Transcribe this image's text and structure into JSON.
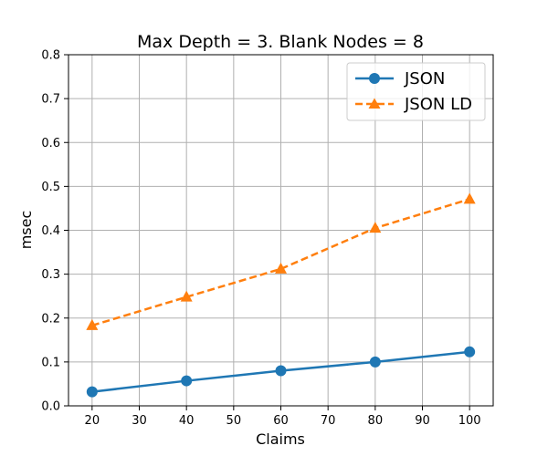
{
  "chart_data": {
    "type": "line",
    "title": "Max Depth = 3. Blank Nodes = 8",
    "xlabel": "Claims",
    "ylabel": "msec",
    "x": [
      20,
      40,
      60,
      80,
      100
    ],
    "xlim": [
      15,
      105
    ],
    "ylim": [
      0,
      0.8
    ],
    "xticks": [
      "20",
      "30",
      "40",
      "50",
      "60",
      "70",
      "80",
      "90",
      "100"
    ],
    "yticks": [
      "0.0",
      "0.1",
      "0.2",
      "0.3",
      "0.4",
      "0.5",
      "0.6",
      "0.7",
      "0.8"
    ],
    "grid": true,
    "legend_position": "top-right",
    "series": [
      {
        "name": "JSON",
        "values": [
          0.032,
          0.057,
          0.08,
          0.1,
          0.123
        ],
        "color": "#1f77b4",
        "marker": "circle",
        "line_style": "solid"
      },
      {
        "name": "JSON LD",
        "values": [
          0.183,
          0.248,
          0.312,
          0.405,
          0.471
        ],
        "color": "#ff7f0e",
        "marker": "triangle",
        "line_style": "dashed"
      }
    ]
  }
}
